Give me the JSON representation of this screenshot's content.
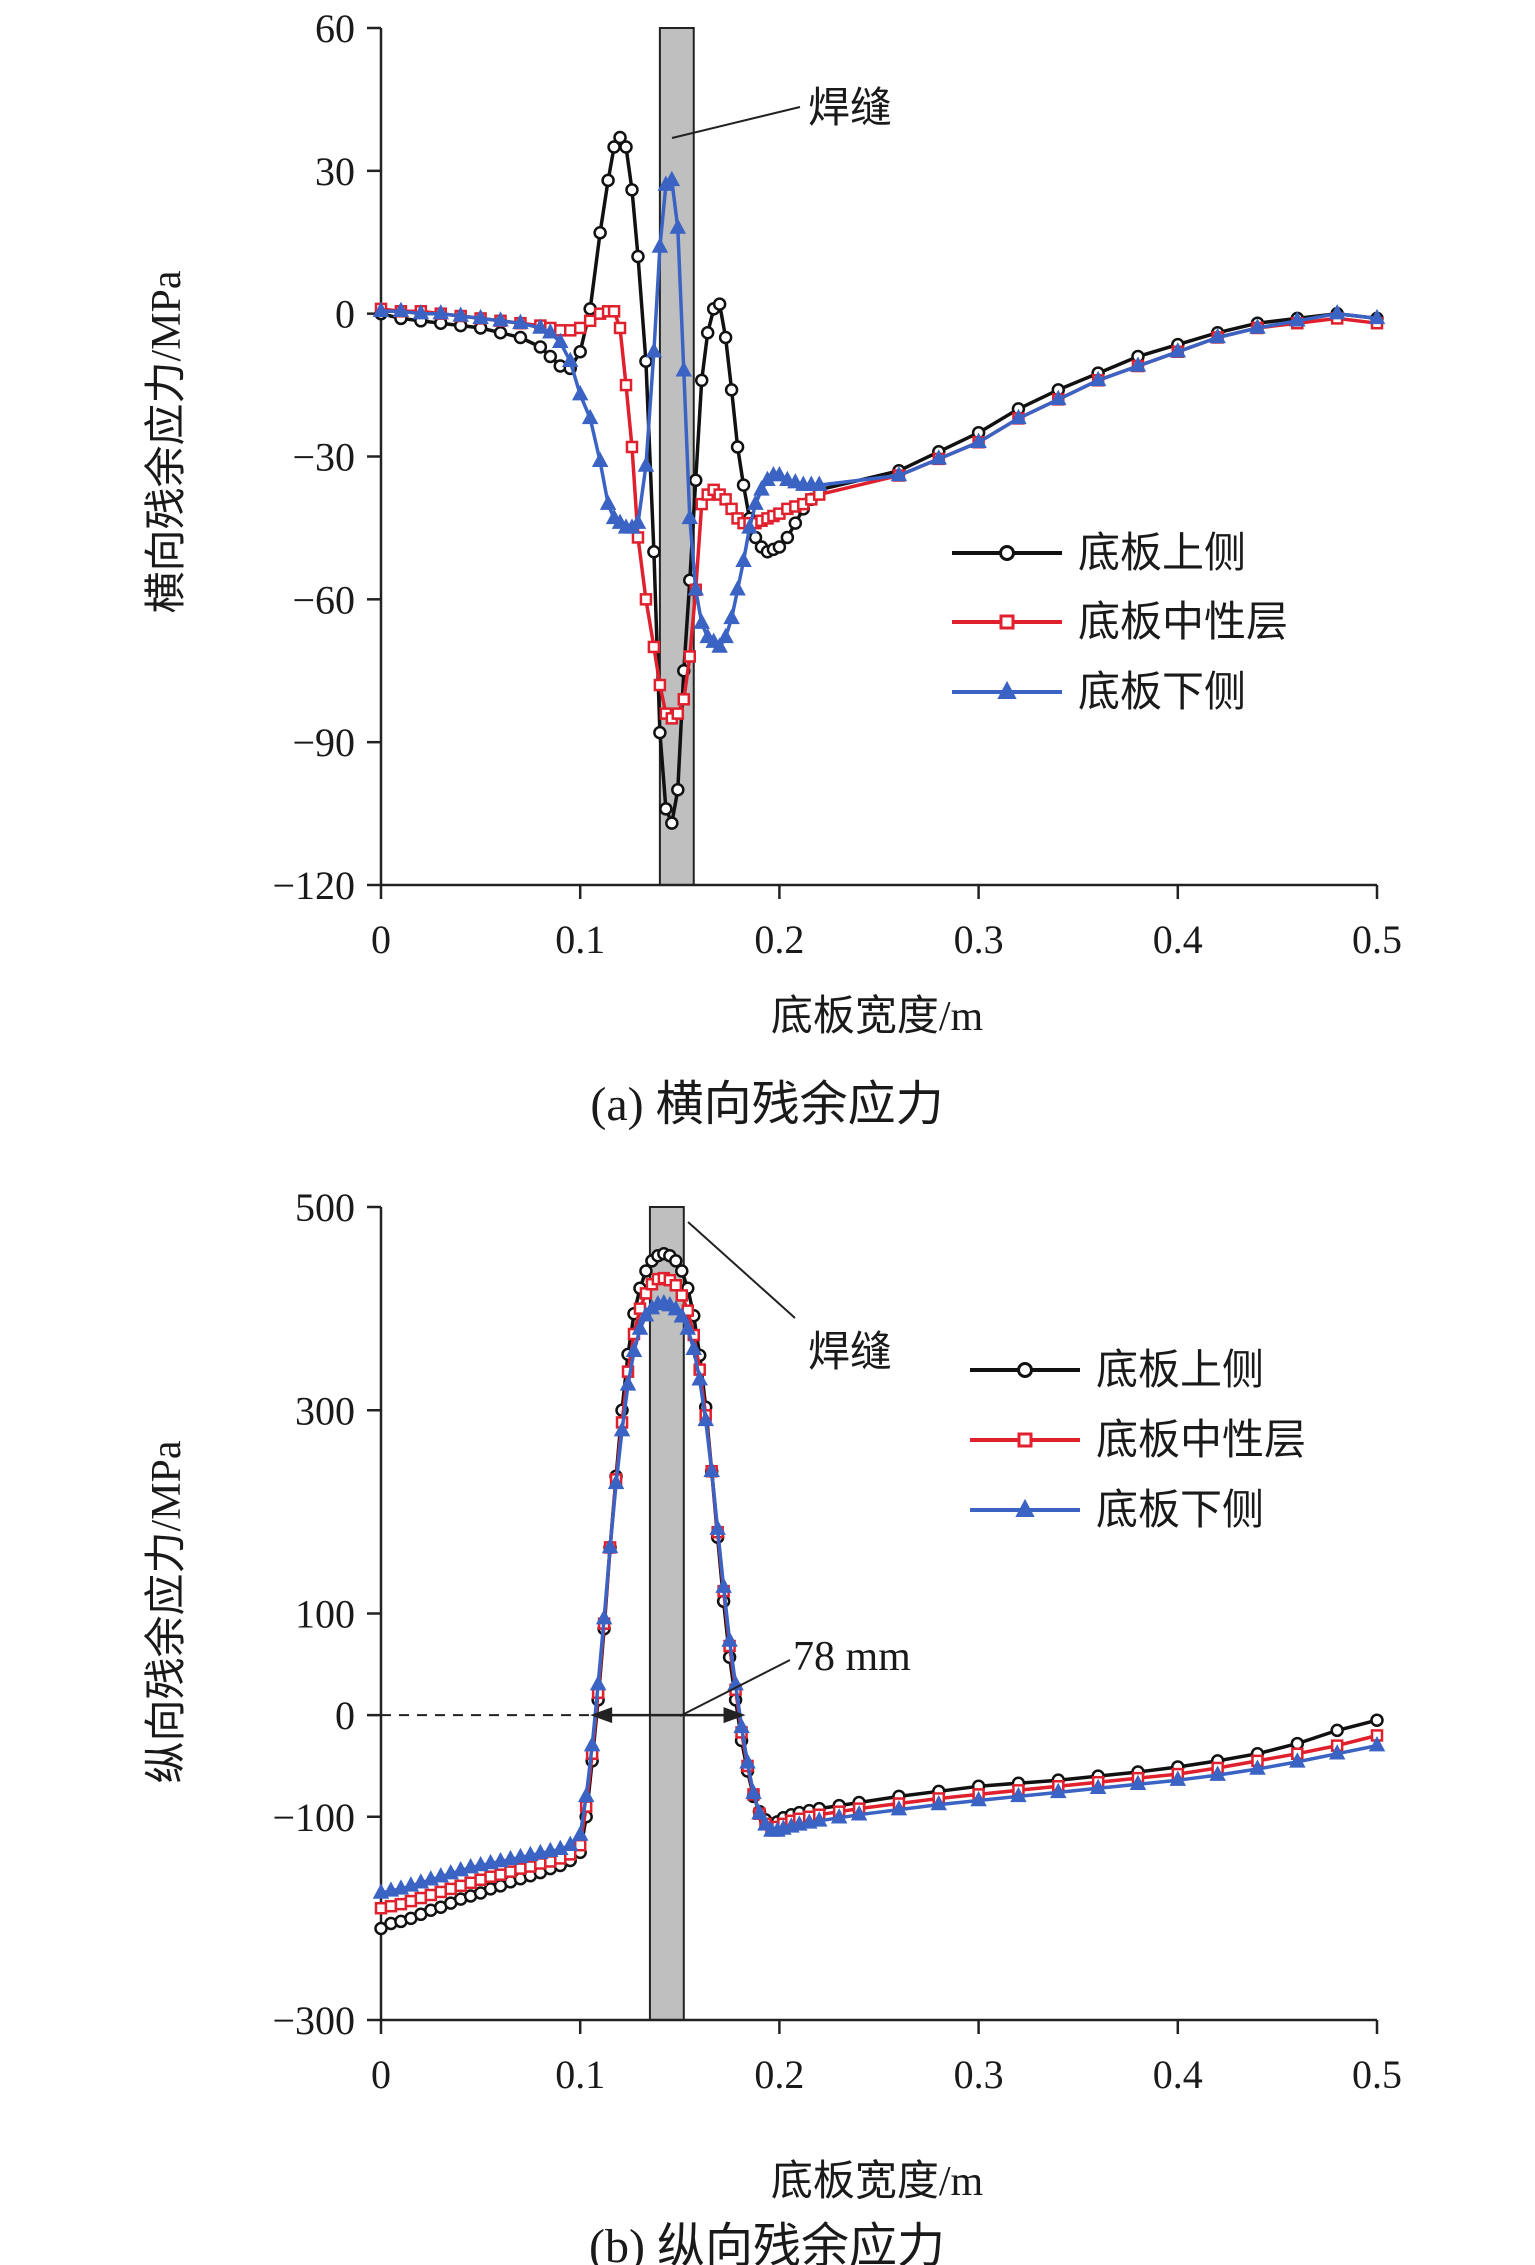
{
  "chart_data": [
    {
      "type": "line",
      "panel": "a",
      "caption": "(a) 横向残余应力",
      "xlabel": "底板宽度/m",
      "ylabel": "横向残余应力/MPa",
      "xlim": [
        0,
        0.5
      ],
      "ylim": [
        -120,
        60
      ],
      "xticks": [
        0,
        0.1,
        0.2,
        0.3,
        0.4,
        0.5
      ],
      "xtick_labels": [
        "0",
        "0.1",
        "0.2",
        "0.3",
        "0.4",
        "0.5"
      ],
      "yticks": [
        60,
        30,
        0,
        -30,
        -60,
        -90,
        -120
      ],
      "ytick_labels": [
        "60",
        "30",
        "0",
        "−30",
        "−60",
        "−90",
        "−120"
      ],
      "weld": {
        "label": "焊缝",
        "x_range": [
          0.14,
          0.157
        ]
      },
      "legend_position": "right-middle",
      "series": [
        {
          "name": "底板上侧",
          "color": "#111111",
          "marker": "circle",
          "x": [
            0,
            0.01,
            0.02,
            0.03,
            0.04,
            0.05,
            0.06,
            0.07,
            0.08,
            0.085,
            0.09,
            0.095,
            0.1,
            0.105,
            0.11,
            0.114,
            0.117,
            0.12,
            0.123,
            0.126,
            0.129,
            0.133,
            0.137,
            0.14,
            0.143,
            0.146,
            0.149,
            0.152,
            0.155,
            0.158,
            0.161,
            0.164,
            0.167,
            0.17,
            0.173,
            0.176,
            0.179,
            0.182,
            0.185,
            0.188,
            0.191,
            0.194,
            0.197,
            0.2,
            0.204,
            0.208,
            0.212,
            0.216,
            0.22,
            0.26,
            0.28,
            0.3,
            0.32,
            0.34,
            0.36,
            0.38,
            0.4,
            0.42,
            0.44,
            0.46,
            0.48,
            0.5
          ],
          "y": [
            0,
            -1,
            -1.5,
            -2,
            -2.5,
            -3,
            -4,
            -5,
            -7,
            -9,
            -11,
            -11.5,
            -8,
            1,
            17,
            28,
            35,
            37,
            35,
            26,
            12,
            -10,
            -50,
            -88,
            -104,
            -107,
            -100,
            -75,
            -56,
            -35,
            -14,
            -4,
            1,
            2,
            -5,
            -16,
            -28,
            -36,
            -43,
            -47,
            -49,
            -50,
            -49.5,
            -49,
            -47,
            -44,
            -41,
            -39,
            -37,
            -33,
            -29,
            -25,
            -20,
            -16,
            -12.5,
            -9,
            -6.5,
            -4,
            -2,
            -1,
            0,
            -1
          ]
        },
        {
          "name": "底板中性层",
          "color": "#e0202c",
          "marker": "square",
          "x": [
            0,
            0.01,
            0.02,
            0.03,
            0.04,
            0.05,
            0.06,
            0.07,
            0.08,
            0.085,
            0.09,
            0.095,
            0.1,
            0.105,
            0.11,
            0.114,
            0.117,
            0.12,
            0.123,
            0.126,
            0.129,
            0.133,
            0.137,
            0.14,
            0.143,
            0.146,
            0.149,
            0.152,
            0.155,
            0.158,
            0.161,
            0.164,
            0.167,
            0.17,
            0.173,
            0.176,
            0.179,
            0.182,
            0.185,
            0.188,
            0.191,
            0.194,
            0.197,
            0.2,
            0.204,
            0.208,
            0.212,
            0.216,
            0.22,
            0.26,
            0.28,
            0.3,
            0.32,
            0.34,
            0.36,
            0.38,
            0.4,
            0.42,
            0.44,
            0.46,
            0.48,
            0.5
          ],
          "y": [
            1,
            0.5,
            0.5,
            0,
            -0.5,
            -1,
            -1.5,
            -2,
            -2.5,
            -3,
            -3.5,
            -3.5,
            -3,
            -1.5,
            0,
            0.5,
            0.5,
            -3,
            -15,
            -28,
            -47,
            -60,
            -70,
            -78,
            -84,
            -85,
            -84,
            -81,
            -72,
            -58,
            -40,
            -38,
            -37,
            -38,
            -39,
            -41,
            -43,
            -44,
            -44,
            -44,
            -43.5,
            -43,
            -42.5,
            -42,
            -41,
            -40.5,
            -40,
            -39,
            -38,
            -34,
            -30.5,
            -27,
            -22,
            -18,
            -14,
            -11,
            -8,
            -5,
            -3,
            -2,
            -1,
            -2
          ]
        },
        {
          "name": "底板下侧",
          "color": "#3b63c4",
          "marker": "triangle",
          "x": [
            0,
            0.01,
            0.02,
            0.03,
            0.04,
            0.05,
            0.06,
            0.07,
            0.08,
            0.085,
            0.09,
            0.095,
            0.1,
            0.105,
            0.11,
            0.114,
            0.117,
            0.12,
            0.123,
            0.126,
            0.129,
            0.133,
            0.137,
            0.14,
            0.143,
            0.146,
            0.149,
            0.152,
            0.155,
            0.158,
            0.161,
            0.164,
            0.167,
            0.17,
            0.173,
            0.176,
            0.179,
            0.182,
            0.185,
            0.188,
            0.191,
            0.194,
            0.197,
            0.2,
            0.204,
            0.208,
            0.212,
            0.216,
            0.22,
            0.26,
            0.28,
            0.3,
            0.32,
            0.34,
            0.36,
            0.38,
            0.4,
            0.42,
            0.44,
            0.46,
            0.48,
            0.5
          ],
          "y": [
            0.5,
            0.5,
            0,
            0,
            -0.5,
            -1,
            -1.5,
            -2,
            -3,
            -4,
            -6,
            -10,
            -17,
            -22,
            -31,
            -40,
            -43,
            -44,
            -45,
            -45,
            -44,
            -32,
            -8,
            14,
            27,
            28,
            18,
            -12,
            -43,
            -58,
            -65,
            -68,
            -69,
            -70,
            -68,
            -64,
            -58,
            -52,
            -45,
            -40,
            -37,
            -35,
            -34,
            -34,
            -35,
            -35.5,
            -36,
            -36,
            -36,
            -34,
            -30.5,
            -27,
            -22,
            -18,
            -14,
            -11,
            -8,
            -5,
            -3,
            -1.5,
            0,
            -1
          ]
        }
      ]
    },
    {
      "type": "line",
      "panel": "b",
      "caption": "(b) 纵向残余应力",
      "xlabel": "底板宽度/m",
      "ylabel": "纵向残余应力/MPa",
      "xlim": [
        0,
        0.5
      ],
      "ylim": [
        -300,
        500
      ],
      "xticks": [
        0,
        0.1,
        0.2,
        0.3,
        0.4,
        0.5
      ],
      "xtick_labels": [
        "0",
        "0.1",
        "0.2",
        "0.3",
        "0.4",
        "0.5"
      ],
      "yticks": [
        500,
        300,
        100,
        0,
        -100,
        -300
      ],
      "ytick_labels": [
        "500",
        "300",
        "100",
        "0",
        "−100",
        "−300"
      ],
      "weld": {
        "label": "焊缝",
        "x_range": [
          0.135,
          0.152
        ]
      },
      "dimension": {
        "label": "78 mm",
        "x_from": 0.105,
        "x_to": 0.183,
        "y": 0
      },
      "legend_position": "top-right",
      "series": [
        {
          "name": "底板上侧",
          "color": "#111111",
          "marker": "circle",
          "x": [
            0,
            0.005,
            0.01,
            0.015,
            0.02,
            0.025,
            0.03,
            0.035,
            0.04,
            0.045,
            0.05,
            0.055,
            0.06,
            0.065,
            0.07,
            0.075,
            0.08,
            0.085,
            0.09,
            0.095,
            0.1,
            0.103,
            0.106,
            0.109,
            0.112,
            0.115,
            0.118,
            0.121,
            0.124,
            0.127,
            0.13,
            0.133,
            0.136,
            0.139,
            0.142,
            0.145,
            0.148,
            0.151,
            0.154,
            0.157,
            0.16,
            0.163,
            0.166,
            0.169,
            0.172,
            0.175,
            0.178,
            0.181,
            0.184,
            0.187,
            0.19,
            0.193,
            0.196,
            0.199,
            0.202,
            0.206,
            0.21,
            0.215,
            0.22,
            0.23,
            0.24,
            0.26,
            0.28,
            0.3,
            0.32,
            0.34,
            0.36,
            0.38,
            0.4,
            0.42,
            0.44,
            0.46,
            0.48,
            0.5
          ],
          "y": [
            -210,
            -205,
            -203,
            -200,
            -196,
            -192,
            -189,
            -185,
            -181,
            -178,
            -175,
            -171,
            -168,
            -164,
            -161,
            -158,
            -155,
            -151,
            -148,
            -143,
            -135,
            -100,
            -45,
            15,
            85,
            165,
            235,
            300,
            355,
            395,
            420,
            437,
            447,
            452,
            454,
            452,
            447,
            437,
            420,
            393,
            354,
            303,
            240,
            175,
            112,
            57,
            15,
            -25,
            -55,
            -80,
            -95,
            -103,
            -107,
            -105,
            -101,
            -98,
            -96,
            -94,
            -92,
            -89,
            -86,
            -80,
            -75,
            -70,
            -67,
            -64,
            -60,
            -56,
            -51,
            -45,
            -38,
            -28,
            -15,
            -5
          ]
        },
        {
          "name": "底板中性层",
          "color": "#e0202c",
          "marker": "square",
          "x": [
            0,
            0.005,
            0.01,
            0.015,
            0.02,
            0.025,
            0.03,
            0.035,
            0.04,
            0.045,
            0.05,
            0.055,
            0.06,
            0.065,
            0.07,
            0.075,
            0.08,
            0.085,
            0.09,
            0.095,
            0.1,
            0.103,
            0.106,
            0.109,
            0.112,
            0.115,
            0.118,
            0.121,
            0.124,
            0.127,
            0.13,
            0.133,
            0.136,
            0.139,
            0.142,
            0.145,
            0.148,
            0.151,
            0.154,
            0.157,
            0.16,
            0.163,
            0.166,
            0.169,
            0.172,
            0.175,
            0.178,
            0.181,
            0.184,
            0.187,
            0.19,
            0.193,
            0.196,
            0.199,
            0.202,
            0.206,
            0.21,
            0.215,
            0.22,
            0.23,
            0.24,
            0.26,
            0.28,
            0.3,
            0.32,
            0.34,
            0.36,
            0.38,
            0.4,
            0.42,
            0.44,
            0.46,
            0.48,
            0.5
          ],
          "y": [
            -190,
            -188,
            -186,
            -183,
            -180,
            -177,
            -174,
            -171,
            -168,
            -165,
            -162,
            -159,
            -157,
            -154,
            -151,
            -149,
            -146,
            -144,
            -141,
            -137,
            -128,
            -90,
            -38,
            22,
            90,
            165,
            232,
            288,
            338,
            375,
            400,
            415,
            424,
            429,
            430,
            428,
            423,
            413,
            398,
            374,
            340,
            295,
            240,
            180,
            122,
            68,
            25,
            -17,
            -50,
            -78,
            -97,
            -107,
            -111,
            -110,
            -107,
            -104,
            -102,
            -100,
            -98,
            -95,
            -92,
            -87,
            -82,
            -78,
            -74,
            -70,
            -66,
            -62,
            -58,
            -52,
            -45,
            -38,
            -30,
            -20
          ]
        },
        {
          "name": "底板下侧",
          "color": "#3b63c4",
          "marker": "triangle",
          "x": [
            0,
            0.005,
            0.01,
            0.015,
            0.02,
            0.025,
            0.03,
            0.035,
            0.04,
            0.045,
            0.05,
            0.055,
            0.06,
            0.065,
            0.07,
            0.075,
            0.08,
            0.085,
            0.09,
            0.095,
            0.1,
            0.103,
            0.106,
            0.109,
            0.112,
            0.115,
            0.118,
            0.121,
            0.124,
            0.127,
            0.13,
            0.133,
            0.136,
            0.139,
            0.142,
            0.145,
            0.148,
            0.151,
            0.154,
            0.157,
            0.16,
            0.163,
            0.166,
            0.169,
            0.172,
            0.175,
            0.178,
            0.181,
            0.184,
            0.187,
            0.19,
            0.193,
            0.196,
            0.199,
            0.202,
            0.206,
            0.21,
            0.215,
            0.22,
            0.23,
            0.24,
            0.26,
            0.28,
            0.3,
            0.32,
            0.34,
            0.36,
            0.38,
            0.4,
            0.42,
            0.44,
            0.46,
            0.48,
            0.5
          ],
          "y": [
            -175,
            -173,
            -171,
            -168,
            -165,
            -162,
            -159,
            -156,
            -153,
            -150,
            -148,
            -146,
            -144,
            -142,
            -140,
            -138,
            -136,
            -134,
            -132,
            -128,
            -118,
            -80,
            -30,
            30,
            95,
            165,
            228,
            280,
            325,
            358,
            380,
            393,
            400,
            404,
            405,
            403,
            399,
            392,
            380,
            360,
            330,
            290,
            240,
            183,
            126,
            73,
            30,
            -12,
            -47,
            -77,
            -97,
            -108,
            -114,
            -114,
            -112,
            -110,
            -108,
            -106,
            -104,
            -101,
            -98,
            -93,
            -88,
            -84,
            -80,
            -76,
            -72,
            -68,
            -64,
            -59,
            -53,
            -46,
            -38,
            -30
          ]
        }
      ]
    }
  ]
}
